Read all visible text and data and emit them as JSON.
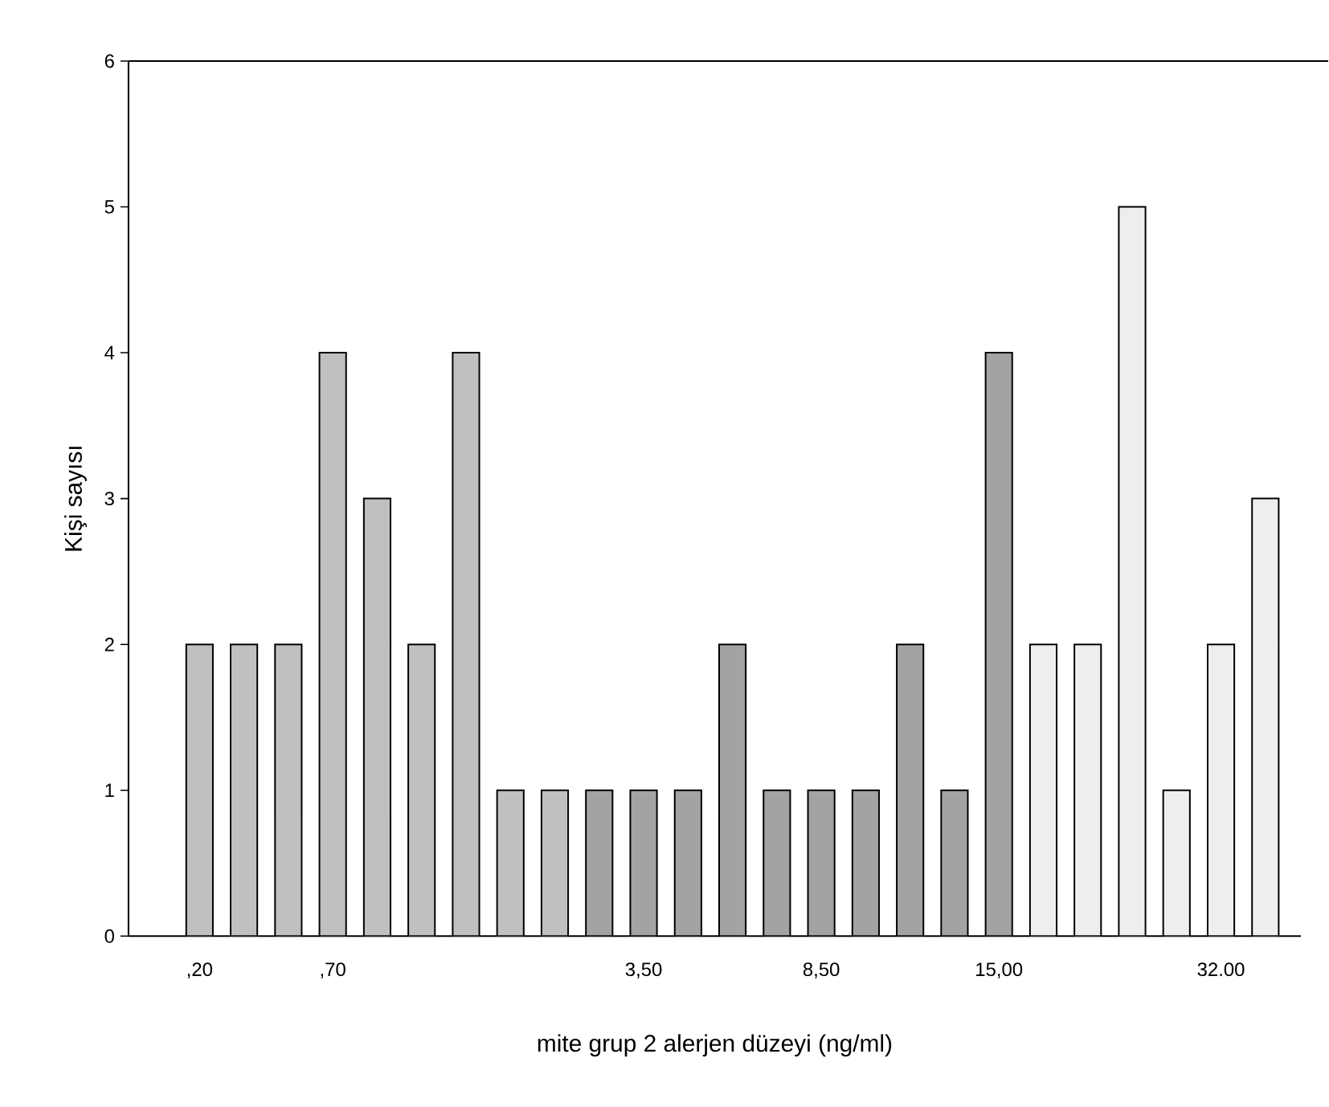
{
  "chart_data": {
    "type": "bar",
    "xlabel": "mite grup 2 alerjen düzeyi (ng/ml)",
    "ylabel": "Kişi sayısı",
    "categories": [
      ",20",
      null,
      null,
      ",70",
      null,
      null,
      null,
      null,
      null,
      null,
      "3,50",
      null,
      null,
      null,
      "8,50",
      null,
      null,
      null,
      "15,00",
      null,
      null,
      null,
      null,
      "32.00",
      null
    ],
    "series": [
      {
        "color": "#c0c0c0",
        "values": [
          2,
          2,
          2,
          4,
          3,
          2,
          4,
          1,
          1,
          null,
          null,
          null,
          null,
          null,
          null,
          null,
          null,
          null,
          null,
          null,
          null,
          null,
          null,
          null,
          null
        ]
      },
      {
        "color": "#a3a3a3",
        "values": [
          null,
          null,
          null,
          null,
          null,
          null,
          null,
          null,
          null,
          1,
          1,
          1,
          2,
          1,
          1,
          1,
          2,
          1,
          4,
          null,
          null,
          null,
          null,
          null,
          null
        ]
      },
      {
        "color": "#eeeeee",
        "values": [
          null,
          null,
          null,
          null,
          null,
          null,
          null,
          null,
          null,
          null,
          null,
          null,
          null,
          null,
          null,
          null,
          null,
          null,
          null,
          2,
          2,
          5,
          1,
          2,
          3
        ]
      }
    ],
    "ylim": [
      0,
      6
    ],
    "yticks": [
      0,
      1,
      2,
      3,
      4,
      5,
      6
    ]
  }
}
